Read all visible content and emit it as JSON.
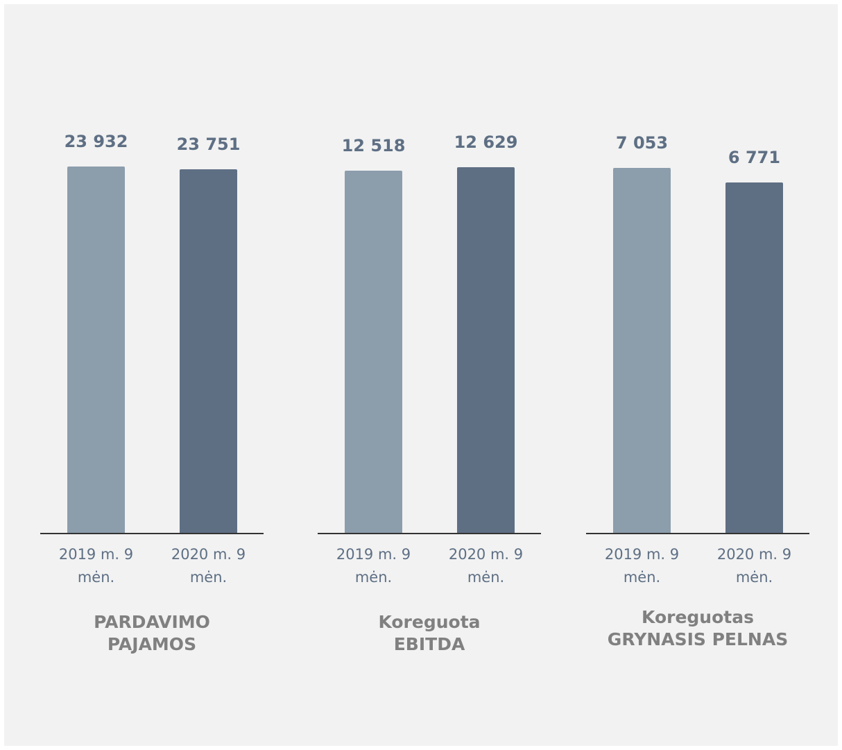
{
  "chart_data": [
    {
      "type": "bar",
      "title": "PARDAVIMO PAJAMOS",
      "categories": [
        "2019 m. 9 mėn.",
        "2020 m. 9 mėn."
      ],
      "values": [
        23932,
        23751
      ],
      "value_labels": [
        "23 932",
        "23 751"
      ],
      "colors": [
        "#8c9dac",
        "#5e6f84"
      ],
      "ylim": [
        0,
        24000
      ]
    },
    {
      "type": "bar",
      "title": "Koreguota EBITDA",
      "categories": [
        "2019 m. 9 mėn.",
        "2020 m. 9 mėn."
      ],
      "values": [
        12518,
        12629
      ],
      "value_labels": [
        "12 518",
        "12 629"
      ],
      "colors": [
        "#8c9dac",
        "#5e6f84"
      ],
      "ylim": [
        0,
        12700
      ]
    },
    {
      "type": "bar",
      "title": "Koreguotas GRYNASIS PELNAS",
      "categories": [
        "2019 m. 9 mėn.",
        "2020 m. 9 mėn."
      ],
      "values": [
        7053,
        6771
      ],
      "value_labels": [
        "7 053",
        "6 771"
      ],
      "colors": [
        "#8c9dac",
        "#5e6f84"
      ],
      "ylim": [
        0,
        7100
      ]
    }
  ]
}
